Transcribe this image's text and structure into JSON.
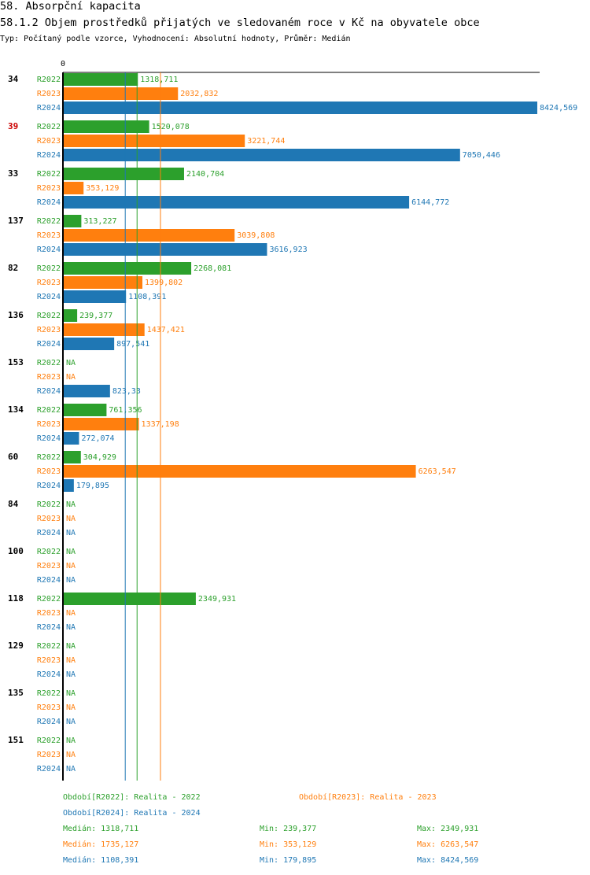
{
  "header": {
    "title": "58. Absorpční kapacita",
    "subtitle": "58.1.2 Objem prostředků přijatých ve sledovaném roce v Kč na obyvatele obce",
    "meta": "Typ: Počítaný podle vzorce, Vyhodnocení: Absolutní hodnoty, Průměr: Medián"
  },
  "colors": {
    "R2022": "#2ca02c",
    "R2023": "#ff7f0e",
    "R2024": "#1f77b4",
    "highlight": "#cc0000"
  },
  "chart_data": {
    "type": "bar",
    "orientation": "horizontal",
    "axis_zero_label": "0",
    "na_label": "NA",
    "series_names": [
      "R2022",
      "R2023",
      "R2024"
    ],
    "xlim": [
      0,
      8424.569
    ],
    "groups": [
      {
        "label": "34",
        "highlight": false,
        "values": [
          1318.711,
          2032.832,
          8424.569
        ],
        "labels": [
          "1318,711",
          "2032,832",
          "8424,569"
        ]
      },
      {
        "label": "39",
        "highlight": true,
        "values": [
          1520.078,
          3221.744,
          7050.446
        ],
        "labels": [
          "1520,078",
          "3221,744",
          "7050,446"
        ]
      },
      {
        "label": "33",
        "highlight": false,
        "values": [
          2140.704,
          353.129,
          6144.772
        ],
        "labels": [
          "2140,704",
          "353,129",
          "6144,772"
        ]
      },
      {
        "label": "137",
        "highlight": false,
        "values": [
          313.227,
          3039.808,
          3616.923
        ],
        "labels": [
          "313,227",
          "3039,808",
          "3616,923"
        ]
      },
      {
        "label": "82",
        "highlight": false,
        "values": [
          2268.081,
          1399.802,
          1108.391
        ],
        "labels": [
          "2268,081",
          "1399,802",
          "1108,391"
        ]
      },
      {
        "label": "136",
        "highlight": false,
        "values": [
          239.377,
          1437.421,
          897.541
        ],
        "labels": [
          "239,377",
          "1437,421",
          "897,541"
        ]
      },
      {
        "label": "153",
        "highlight": false,
        "values": [
          null,
          null,
          823.33
        ],
        "labels": [
          "NA",
          "NA",
          "823,33"
        ]
      },
      {
        "label": "134",
        "highlight": false,
        "values": [
          761.356,
          1337.198,
          272.074
        ],
        "labels": [
          "761,356",
          "1337,198",
          "272,074"
        ]
      },
      {
        "label": "60",
        "highlight": false,
        "values": [
          304.929,
          6263.547,
          179.895
        ],
        "labels": [
          "304,929",
          "6263,547",
          "179,895"
        ]
      },
      {
        "label": "84",
        "highlight": false,
        "values": [
          null,
          null,
          null
        ],
        "labels": [
          "NA",
          "NA",
          "NA"
        ]
      },
      {
        "label": "100",
        "highlight": false,
        "values": [
          null,
          null,
          null
        ],
        "labels": [
          "NA",
          "NA",
          "NA"
        ]
      },
      {
        "label": "118",
        "highlight": false,
        "values": [
          2349.931,
          null,
          null
        ],
        "labels": [
          "2349,931",
          "NA",
          "NA"
        ]
      },
      {
        "label": "129",
        "highlight": false,
        "values": [
          null,
          null,
          null
        ],
        "labels": [
          "NA",
          "NA",
          "NA"
        ]
      },
      {
        "label": "135",
        "highlight": false,
        "values": [
          null,
          null,
          null
        ],
        "labels": [
          "NA",
          "NA",
          "NA"
        ]
      },
      {
        "label": "151",
        "highlight": false,
        "values": [
          null,
          null,
          null
        ],
        "labels": [
          "NA",
          "NA",
          "NA"
        ]
      }
    ],
    "medians": [
      1318.711,
      1735.127,
      1108.391
    ]
  },
  "legend": {
    "r2022": "Období[R2022]: Realita - 2022",
    "r2023": "Období[R2023]: Realita - 2023",
    "r2024": "Období[R2024]: Realita - 2024"
  },
  "stats": [
    {
      "median": "Medián: 1318,711",
      "min": "Min: 239,377",
      "max": "Max: 2349,931"
    },
    {
      "median": "Medián: 1735,127",
      "min": "Min: 353,129",
      "max": "Max: 6263,547"
    },
    {
      "median": "Medián: 1108,391",
      "min": "Min: 179,895",
      "max": "Max: 8424,569"
    }
  ]
}
